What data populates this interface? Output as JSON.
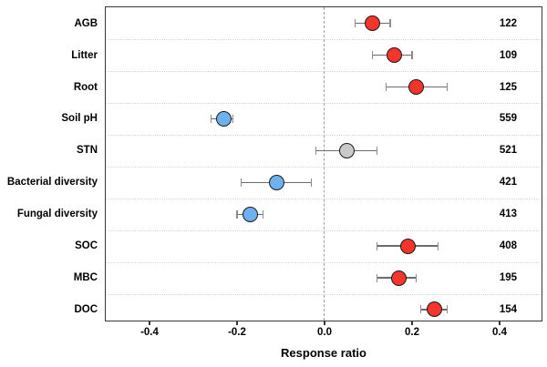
{
  "chart_data": {
    "type": "scatter",
    "subtype": "forest-plot-with-error-bars",
    "title": "",
    "xlabel": "Response ratio",
    "ylabel": "",
    "xlim": [
      -0.5,
      0.5
    ],
    "xticks": [
      -0.4,
      -0.2,
      0.0,
      0.2,
      0.4
    ],
    "xtick_labels": [
      "-0.4",
      "-0.2",
      "0.0",
      "0.2",
      "0.4"
    ],
    "zero_reference_line": 0.0,
    "grid": "dotted horizontal separators between rows",
    "legend": "none",
    "categories": [
      "AGB",
      "Litter",
      "Root",
      "Soil pH",
      "STN",
      "Bacterial diversity",
      "Fungal diversity",
      "SOC",
      "MBC",
      "DOC"
    ],
    "series": [
      {
        "name": "AGB",
        "value": 0.11,
        "ci_low": 0.07,
        "ci_high": 0.15,
        "n": 122,
        "color_key": "red"
      },
      {
        "name": "Litter",
        "value": 0.16,
        "ci_low": 0.11,
        "ci_high": 0.2,
        "n": 109,
        "color_key": "red"
      },
      {
        "name": "Root",
        "value": 0.21,
        "ci_low": 0.14,
        "ci_high": 0.28,
        "n": 125,
        "color_key": "red"
      },
      {
        "name": "Soil pH",
        "value": -0.23,
        "ci_low": -0.26,
        "ci_high": -0.21,
        "n": 559,
        "color_key": "blue"
      },
      {
        "name": "STN",
        "value": 0.05,
        "ci_low": -0.02,
        "ci_high": 0.12,
        "n": 521,
        "color_key": "gray"
      },
      {
        "name": "Bacterial diversity",
        "value": -0.11,
        "ci_low": -0.19,
        "ci_high": -0.03,
        "n": 421,
        "color_key": "blue"
      },
      {
        "name": "Fungal diversity",
        "value": -0.17,
        "ci_low": -0.2,
        "ci_high": -0.14,
        "n": 413,
        "color_key": "blue"
      },
      {
        "name": "SOC",
        "value": 0.19,
        "ci_low": 0.12,
        "ci_high": 0.26,
        "n": 408,
        "color_key": "red"
      },
      {
        "name": "MBC",
        "value": 0.17,
        "ci_low": 0.12,
        "ci_high": 0.21,
        "n": 195,
        "color_key": "red"
      },
      {
        "name": "DOC",
        "value": 0.25,
        "ci_low": 0.22,
        "ci_high": 0.28,
        "n": 154,
        "color_key": "red"
      }
    ],
    "colors": {
      "red": "#F5352C",
      "blue": "#6EB1F0",
      "gray": "#C9C9C9",
      "marker_outline": "#1A1A1A",
      "error_bar": "#6B6B6B",
      "zero_line": "#A0A0A0",
      "grid_line": "#D8D8D8",
      "axis_border": "#383838",
      "text": "#000000",
      "background": "#FFFFFF"
    }
  }
}
